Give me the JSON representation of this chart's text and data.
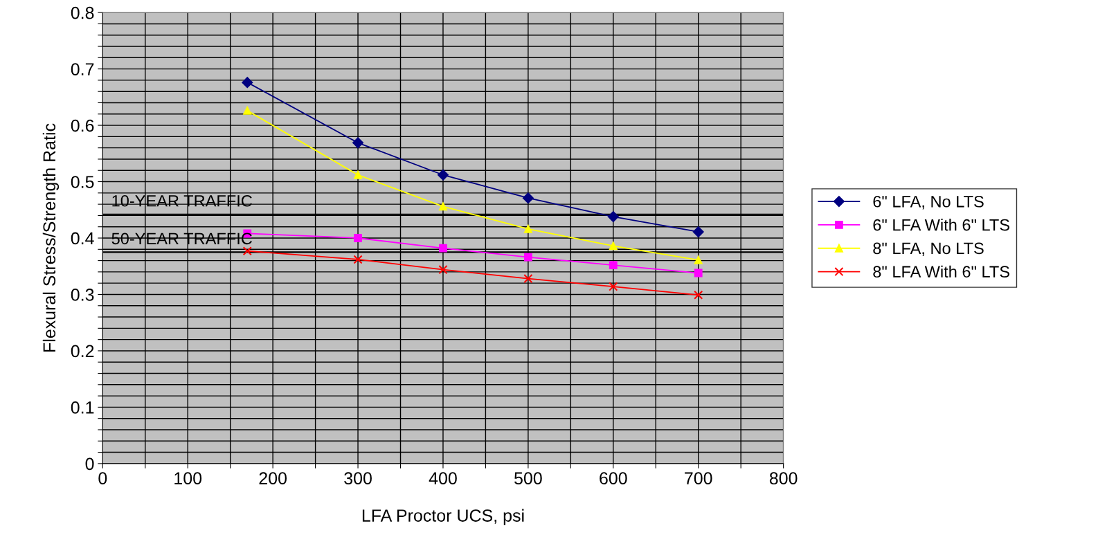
{
  "chart_data": {
    "type": "line",
    "xlabel": "LFA Proctor UCS, psi",
    "ylabel": "Flexural Stress/Strength Ratic",
    "x": [
      170,
      300,
      400,
      500,
      600,
      700
    ],
    "series": [
      {
        "name": "6\" LFA, No LTS",
        "color": "#000080",
        "marker": "diamond",
        "values": [
          0.676,
          0.569,
          0.512,
          0.471,
          0.438,
          0.411
        ]
      },
      {
        "name": "6\" LFA With 6\" LTS",
        "color": "#ff00ff",
        "marker": "square",
        "values": [
          0.408,
          0.4,
          0.382,
          0.366,
          0.352,
          0.338
        ]
      },
      {
        "name": "8\" LFA, No LTS",
        "color": "#ffff00",
        "marker": "triangle",
        "values": [
          0.626,
          0.512,
          0.456,
          0.416,
          0.386,
          0.361
        ]
      },
      {
        "name": "8\" LFA With 6\" LTS",
        "color": "#ff0000",
        "marker": "cross",
        "values": [
          0.377,
          0.362,
          0.344,
          0.328,
          0.314,
          0.299
        ]
      }
    ],
    "xlim": [
      0,
      800
    ],
    "xticks": [
      0,
      {
        "value": 50,
        "label": null
      },
      100,
      {
        "value": 150,
        "label": null
      },
      200,
      {
        "value": 250,
        "label": null
      },
      300,
      {
        "value": 350,
        "label": null
      },
      400,
      {
        "value": 450,
        "label": null
      },
      500,
      {
        "value": 550,
        "label": null
      },
      600,
      {
        "value": 650,
        "label": null
      },
      700,
      {
        "value": 750,
        "label": null
      },
      800
    ],
    "ylim": [
      0,
      0.8
    ],
    "yticks": [
      0,
      {
        "value": 0.02,
        "label": null
      },
      {
        "value": 0.04,
        "label": null
      },
      {
        "value": 0.06,
        "label": null
      },
      {
        "value": 0.08,
        "label": null
      },
      0.1,
      {
        "value": 0.12,
        "label": null
      },
      {
        "value": 0.14,
        "label": null
      },
      {
        "value": 0.16,
        "label": null
      },
      {
        "value": 0.18,
        "label": null
      },
      0.2,
      {
        "value": 0.22,
        "label": null
      },
      {
        "value": 0.24,
        "label": null
      },
      {
        "value": 0.26,
        "label": null
      },
      {
        "value": 0.28,
        "label": null
      },
      0.3,
      {
        "value": 0.32,
        "label": null
      },
      {
        "value": 0.34,
        "label": null
      },
      {
        "value": 0.36,
        "label": null
      },
      {
        "value": 0.38,
        "label": null
      },
      0.4,
      {
        "value": 0.42,
        "label": null
      },
      {
        "value": 0.44,
        "label": null
      },
      {
        "value": 0.46,
        "label": null
      },
      {
        "value": 0.48,
        "label": null
      },
      0.5,
      {
        "value": 0.52,
        "label": null
      },
      {
        "value": 0.54,
        "label": null
      },
      {
        "value": 0.56,
        "label": null
      },
      {
        "value": 0.58,
        "label": null
      },
      0.6,
      {
        "value": 0.62,
        "label": null
      },
      {
        "value": 0.64,
        "label": null
      },
      {
        "value": 0.66,
        "label": null
      },
      {
        "value": 0.68,
        "label": null
      },
      0.7,
      {
        "value": 0.72,
        "label": null
      },
      {
        "value": 0.74,
        "label": null
      },
      {
        "value": 0.76,
        "label": null
      },
      {
        "value": 0.78,
        "label": null
      },
      0.8
    ],
    "ref_lines": [
      {
        "axis": "y",
        "value": 0.442,
        "label": "10-YEAR TRAFFIC",
        "color": "#000000"
      },
      {
        "axis": "y",
        "value": 0.375,
        "label": "50-YEAR TRAFFIC",
        "color": "#000000"
      }
    ],
    "grid": true,
    "legend": "right",
    "line_style": "solid"
  }
}
